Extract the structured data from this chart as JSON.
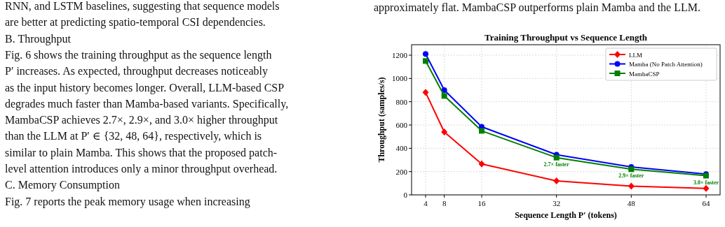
{
  "chart_data": {
    "type": "line",
    "title": "Training Throughput vs Sequence Length",
    "xlabel": "Sequence Length P′ (tokens)",
    "ylabel": "Throughput (samples/s)",
    "x": [
      4,
      8,
      16,
      32,
      48,
      64
    ],
    "series": [
      {
        "name": "LLM",
        "color": "#ff0000",
        "marker": "diamond",
        "values": [
          880,
          540,
          265,
          120,
          75,
          55
        ]
      },
      {
        "name": "Mamba (No Patch Attention)",
        "color": "#0000ff",
        "marker": "circle",
        "values": [
          1210,
          900,
          585,
          345,
          240,
          178
        ]
      },
      {
        "name": "MambaCSP",
        "color": "#008000",
        "marker": "square",
        "values": [
          1150,
          850,
          550,
          320,
          220,
          165
        ]
      }
    ],
    "xlim": [
      1,
      67
    ],
    "xticks": [
      4,
      8,
      16,
      32,
      48,
      64
    ],
    "ylim": [
      0,
      1290
    ],
    "yticks": [
      0,
      200,
      400,
      600,
      800,
      1000,
      1200
    ],
    "grid": true,
    "legend": "top right",
    "line_style": "solid",
    "annotations": [
      "RNN, and LSTM baselines, suggesting that sequence models",
      "are better at predicting spatio-temporal CSI dependencies.",
      "B. Throughput",
      "Fig. 6 shows the training throughput as the sequence length",
      "P′ increases. As expected, throughput decreases noticeably",
      "as the input history becomes longer. Overall, LLM-based CSP",
      "degrades much faster than Mamba-based variants. Specifically,",
      "MambaCSP achieves 2.7×, 2.9×, and 3.0× higher throughput",
      "than the LLM at P′ ∈ {32, 48, 64}, respectively, which is",
      "similar to plain Mamba. This shows that the proposed patch-",
      "level attention introduces only a minor throughput overhead.",
      "C. Memory Consumption",
      "Fig. 7 reports the peak memory usage when increasing",
      "approximately flat. MambaCSP outperforms plain Mamba and the LLM.",
      "2.7× faster",
      "2.9× faster",
      "3.0× faster"
    ]
  }
}
